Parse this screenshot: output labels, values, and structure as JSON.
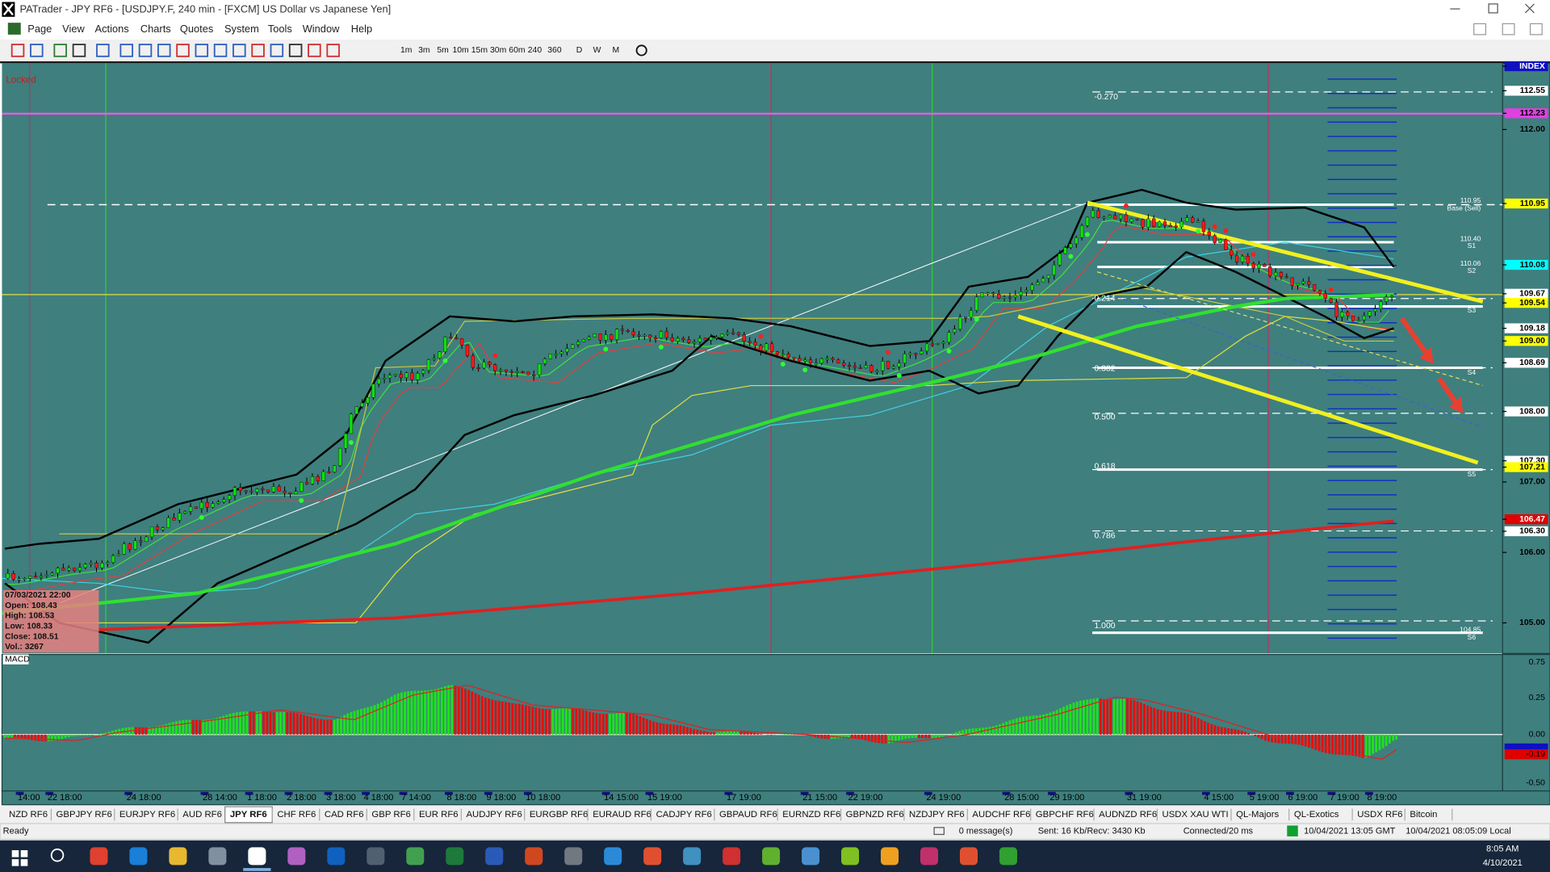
{
  "window": {
    "title": "PATrader - JPY RF6 - [USDJPY.F, 240 min - [FXCM] US Dollar vs Japanese Yen]",
    "menu": [
      "Page",
      "View",
      "Actions",
      "Charts",
      "Quotes",
      "System",
      "Tools",
      "Window",
      "Help"
    ],
    "timeframes": [
      "1m",
      "3m",
      "5m",
      "10m",
      "15m",
      "30m",
      "60m",
      "240",
      "360",
      "D",
      "W",
      "M"
    ]
  },
  "chart": {
    "locked": "Locked",
    "price_labels": [
      {
        "text": "INDEX",
        "bg": "#1010c0",
        "fg": "#ffffff"
      },
      {
        "text": "112.55",
        "bg": "#ffffff",
        "fg": "#000000"
      },
      {
        "text": "112.23",
        "bg": "#e040e0",
        "fg": "#000000"
      },
      {
        "text": "112.00"
      },
      {
        "text": "110.95",
        "bg": "#ffff00",
        "fg": "#000000"
      },
      {
        "text": "110.08",
        "bg": "#00ffff",
        "fg": "#000000"
      },
      {
        "text": "109.67",
        "bg": "#ffffff",
        "fg": "#000000"
      },
      {
        "text": "109.54",
        "bg": "#ffff00",
        "fg": "#000000"
      },
      {
        "text": "109.18",
        "bg": "#ffffff",
        "fg": "#000000"
      },
      {
        "text": "109.00",
        "bg": "#ffff00",
        "fg": "#000000"
      },
      {
        "text": "108.69",
        "bg": "#ffffff",
        "fg": "#000000"
      },
      {
        "text": "108.00",
        "bg": "#ffffff",
        "fg": "#000000"
      },
      {
        "text": "107.30",
        "bg": "#ffffff",
        "fg": "#000000"
      },
      {
        "text": "107.21",
        "bg": "#ffff00",
        "fg": "#000000"
      },
      {
        "text": "107.00"
      },
      {
        "text": "106.47",
        "bg": "#e00000",
        "fg": "#ffffff"
      },
      {
        "text": "106.30",
        "bg": "#ffffff",
        "fg": "#000000"
      },
      {
        "text": "106.00"
      },
      {
        "text": "105.00"
      }
    ],
    "fib_labels": [
      "-0.270",
      "0.214",
      "0.382",
      "0.500",
      "0.618",
      "0.786",
      "1.000"
    ],
    "pivot_labels": [
      "110.95",
      "Base (Sell)",
      "110.40",
      "S1",
      "110.06",
      "S2",
      "S3",
      "S4",
      "S5",
      "104.85",
      "S6"
    ],
    "info": [
      "07/03/2021 22:00",
      "Open: 108.43",
      "High: 108.53",
      "Low: 108.33",
      "Close: 108.51",
      "Vol.: 3267"
    ],
    "macd_title": "MACD",
    "macd_labels": [
      {
        "text": "0.75"
      },
      {
        "text": "0.25"
      },
      {
        "text": "0.00"
      },
      {
        "text": "-0.19",
        "bg": "#e00000"
      },
      {
        "text": "-0.50"
      }
    ],
    "time_labels": [
      "14:00",
      "22 18:00",
      "24 18:00",
      "28 14:00",
      "1 18:00",
      "2 18:00",
      "3 18:00",
      "4 18:00",
      "7 14:00",
      "8 18:00",
      "9 18:00",
      "10 18:00",
      "14 15:00",
      "15 19:00",
      "17 19:00",
      "21 15:00",
      "22 19:00",
      "24 19:00",
      "28 15:00",
      "29 19:00",
      "31 19:00",
      "4 15:00",
      "5 19:00",
      "6 19:00",
      "7 19:00",
      "8 19:00"
    ]
  },
  "tabs": [
    "NZD RF6",
    "GBPJPY RF6",
    "EURJPY RF6",
    "AUD RF6",
    "JPY RF6",
    "CHF RF6",
    "CAD RF6",
    "GBP RF6",
    "EUR RF6",
    "AUDJPY RF6",
    "EURGBP RF6",
    "EURAUD RF6",
    "CADJPY RF6",
    "GBPAUD RF6",
    "EURNZD RF6",
    "GBPNZD RF6",
    "NZDJPY RF6",
    "AUDCHF RF6",
    "GBPCHF RF6",
    "AUDNZD RF6",
    "USDX XAU WTI",
    "QL-Majors",
    "QL-Exotics",
    "USDX RF6",
    "Bitcoin"
  ],
  "status": {
    "ready": "Ready",
    "messages": "0 message(s)",
    "traffic": "Sent: 16 Kb/Recv: 3430 Kb",
    "connection": "Connected/20 ms",
    "gmt": "10/04/2021 13:05 GMT",
    "local": "10/04/2021 08:05:09 Local"
  },
  "taskbar": {
    "time": "8:05 AM",
    "date": "4/10/2021"
  }
}
